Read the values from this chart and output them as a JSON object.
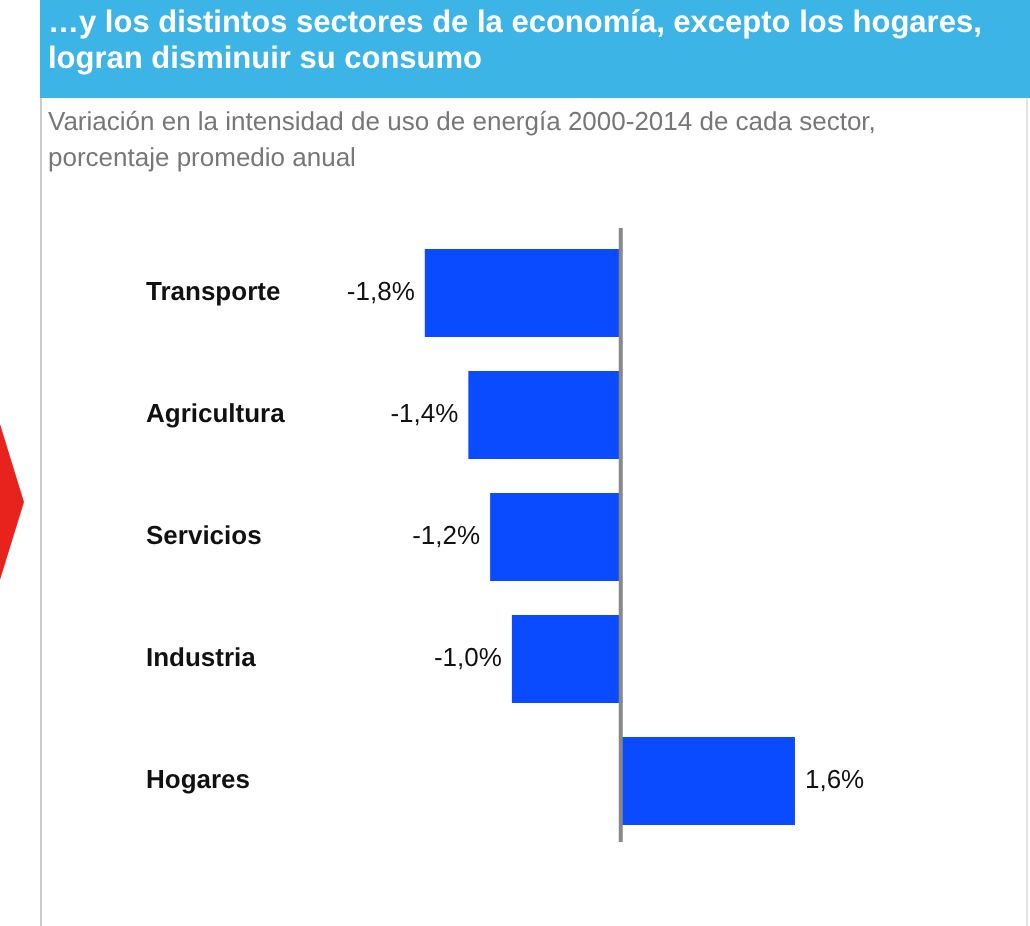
{
  "chart_data": {
    "type": "bar",
    "orientation": "horizontal",
    "title": "…y los distintos sectores de la economía, excepto los hogares, logran disminuir su consumo",
    "subtitle": "Variación en la intensidad de uso de energía 2000-2014 de cada sector, porcentaje promedio anual",
    "categories": [
      "Transporte",
      "Agricultura",
      "Servicios",
      "Industria",
      "Hogares"
    ],
    "values": [
      -1.8,
      -1.4,
      -1.2,
      -1.0,
      1.6
    ],
    "value_labels": [
      "-1,8%",
      "-1,4%",
      "-1,2%",
      "-1,0%",
      "1,6%"
    ],
    "color": "#0a4bff",
    "legend": false,
    "tick_labels": "y"
  }
}
